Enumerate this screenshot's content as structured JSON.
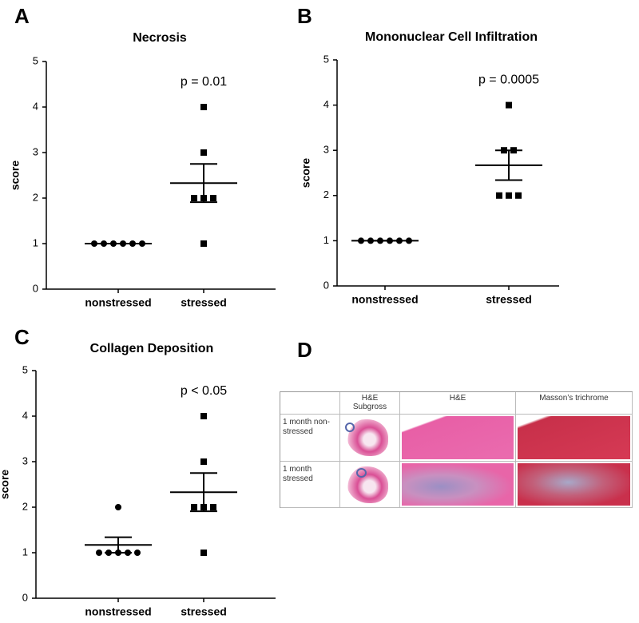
{
  "chart_data": [
    {
      "type": "dotplot",
      "panel_label": "A",
      "title": "Necrosis",
      "y_label": "score",
      "annotation": "p = 0.01",
      "categories": [
        "nonstressed",
        "stressed"
      ],
      "groups": [
        {
          "marker": "circle",
          "values": [
            1,
            1,
            1,
            1,
            1,
            1
          ],
          "mean": 1,
          "sem": 0
        },
        {
          "marker": "square",
          "values": [
            4,
            3,
            2,
            2,
            2,
            1
          ],
          "mean": 2.33,
          "sem": 0.42
        }
      ],
      "ylim": [
        0,
        5
      ],
      "yticks": [
        0,
        1,
        2,
        3,
        4,
        5
      ],
      "color": "#000000"
    },
    {
      "type": "dotplot",
      "panel_label": "B",
      "title": "Mononuclear Cell Infiltration",
      "y_label": "score",
      "annotation": "p = 0.0005",
      "categories": [
        "nonstressed",
        "stressed"
      ],
      "groups": [
        {
          "marker": "circle",
          "values": [
            1,
            1,
            1,
            1,
            1,
            1
          ],
          "mean": 1,
          "sem": 0
        },
        {
          "marker": "square",
          "values": [
            4,
            3,
            3,
            2,
            2,
            2
          ],
          "mean": 2.67,
          "sem": 0.33
        }
      ],
      "ylim": [
        0,
        5
      ],
      "yticks": [
        0,
        1,
        2,
        3,
        4,
        5
      ],
      "color": "#000000"
    },
    {
      "type": "dotplot",
      "panel_label": "C",
      "title": "Collagen Deposition",
      "y_label": "score",
      "annotation": "p < 0.05",
      "categories": [
        "nonstressed",
        "stressed"
      ],
      "groups": [
        {
          "marker": "circle",
          "values": [
            2,
            1,
            1,
            1,
            1,
            1
          ],
          "mean": 1.17,
          "sem": 0.17
        },
        {
          "marker": "square",
          "values": [
            4,
            3,
            2,
            2,
            2,
            1
          ],
          "mean": 2.33,
          "sem": 0.42
        }
      ],
      "ylim": [
        0,
        5
      ],
      "yticks": [
        0,
        1,
        2,
        3,
        4,
        5
      ],
      "color": "#000000"
    }
  ],
  "panel_d": {
    "panel_label": "D",
    "columns": [
      "H&E Subgross",
      "H&E",
      "Masson’s trichrome"
    ],
    "rows": [
      "1 month non-stressed",
      "1 month stressed"
    ]
  }
}
